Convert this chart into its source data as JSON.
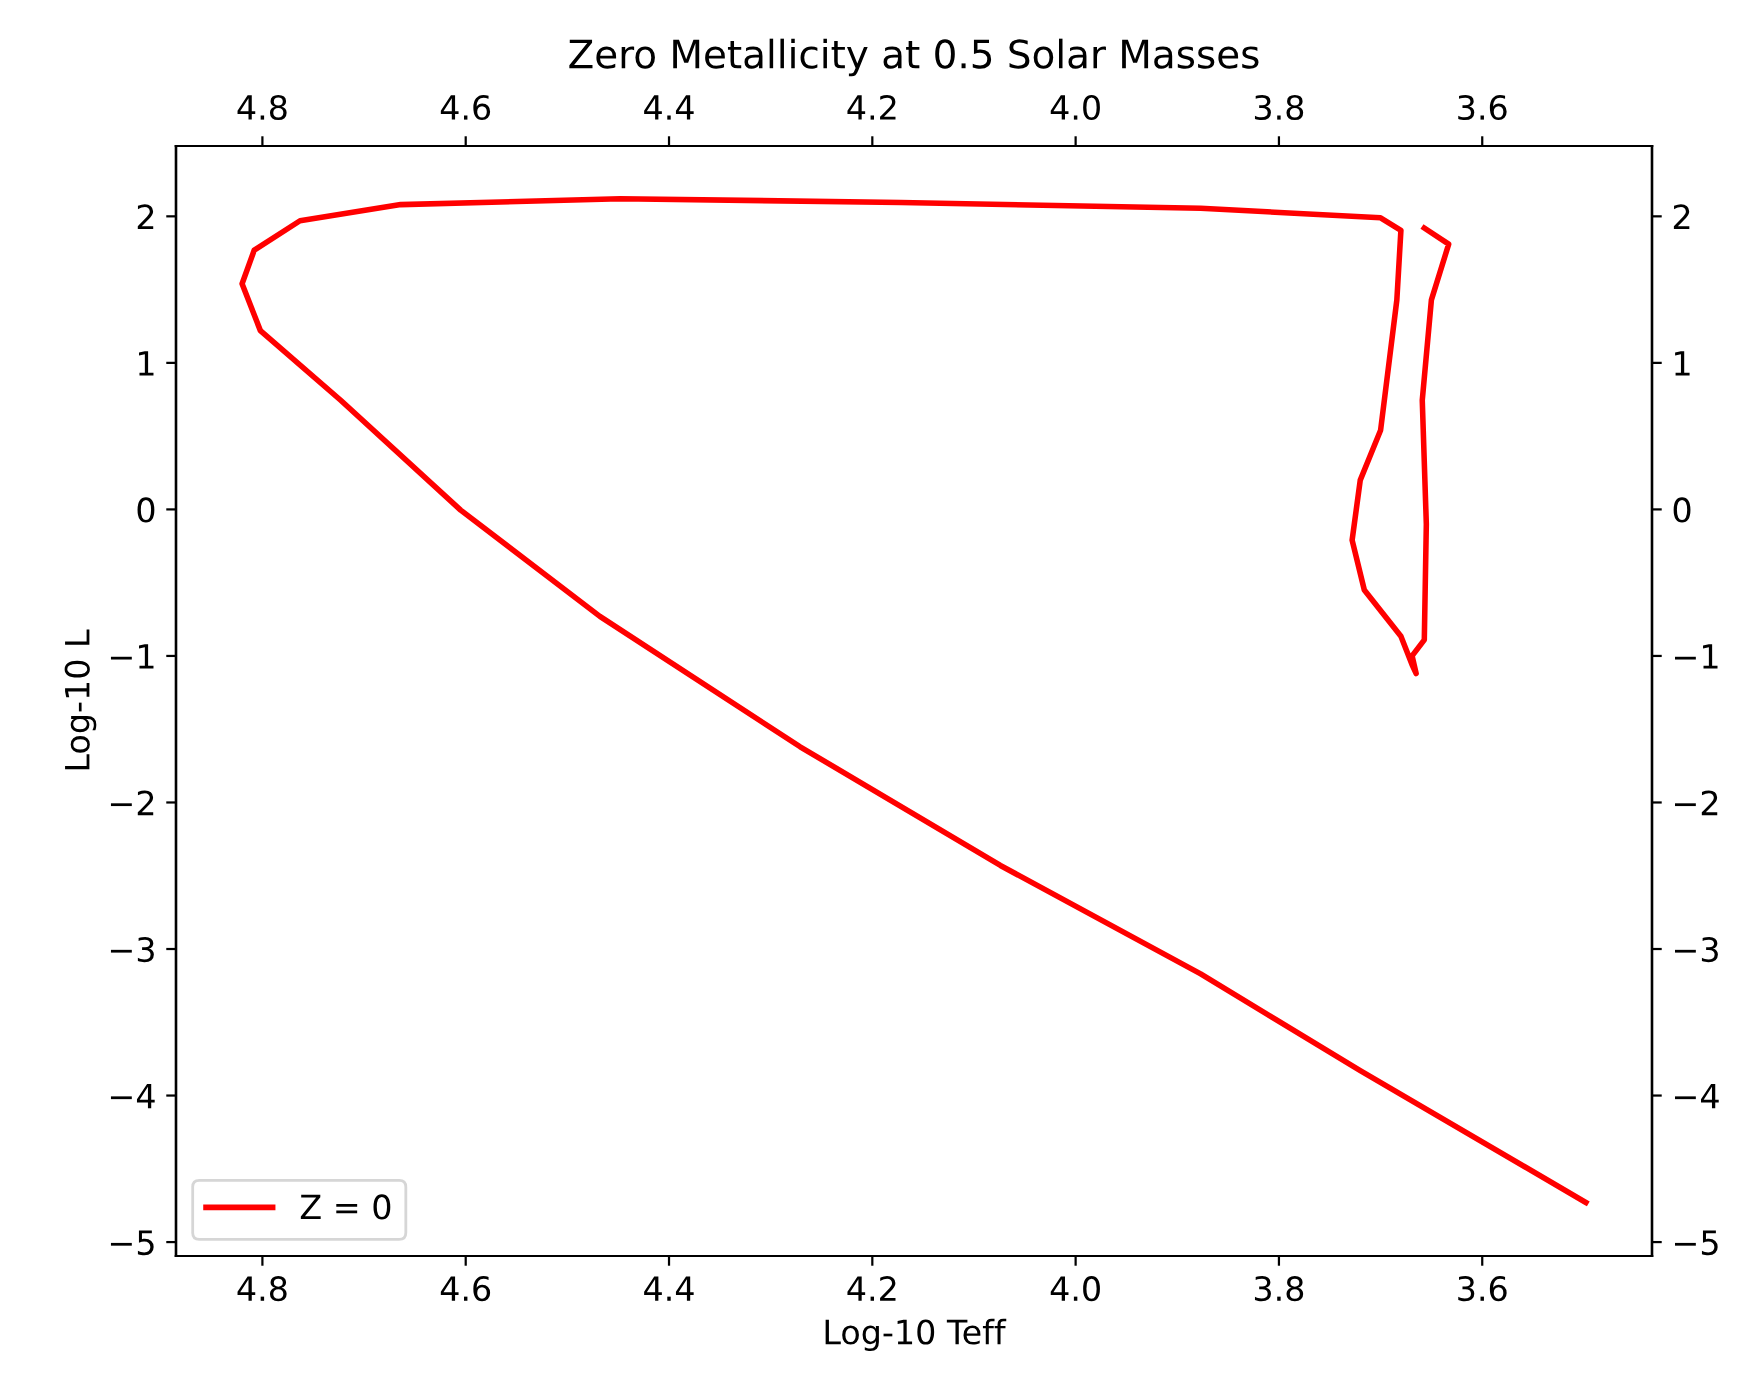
{
  "chart_data": {
    "type": "line",
    "title": "Zero Metallicity at 0.5 Solar Masses",
    "xlabel": "Log-10 Teff",
    "ylabel": "Log-10 L",
    "series": [
      {
        "name": "Z = 0",
        "color": "#ff0000",
        "x": [
          3.498,
          3.72,
          3.877,
          4.074,
          4.271,
          4.468,
          4.605,
          4.723,
          4.802,
          4.82,
          4.808,
          4.763,
          4.664,
          4.448,
          4.172,
          3.877,
          3.7,
          3.68,
          3.684,
          3.7,
          3.72,
          3.728,
          3.716,
          3.68,
          3.669,
          3.665,
          3.669,
          3.657,
          3.655,
          3.659,
          3.65,
          3.633,
          3.657
        ],
        "values": [
          -4.73,
          -3.83,
          -3.17,
          -2.43,
          -1.62,
          -0.73,
          -0.005,
          0.745,
          1.22,
          1.54,
          1.77,
          1.97,
          2.08,
          2.12,
          2.095,
          2.055,
          1.99,
          1.905,
          1.43,
          0.54,
          0.2,
          -0.21,
          -0.55,
          -0.865,
          -1.06,
          -1.12,
          -1.0,
          -0.89,
          -0.1,
          0.745,
          1.43,
          1.81,
          1.92
        ]
      }
    ],
    "xlim": [
      4.885,
      3.433
    ],
    "xticks": [
      {
        "value": 4.8,
        "label": "4.8"
      },
      {
        "value": 4.6,
        "label": "4.6"
      },
      {
        "value": 4.4,
        "label": "4.4"
      },
      {
        "value": 4.2,
        "label": "4.2"
      },
      {
        "value": 4.0,
        "label": "4.0"
      },
      {
        "value": 3.8,
        "label": "3.8"
      },
      {
        "value": 3.6,
        "label": "3.6"
      }
    ],
    "x2lim": [
      4.885,
      3.433
    ],
    "x2ticks": [
      {
        "value": 4.8,
        "label": "4.8"
      },
      {
        "value": 4.6,
        "label": "4.6"
      },
      {
        "value": 4.4,
        "label": "4.4"
      },
      {
        "value": 4.2,
        "label": "4.2"
      },
      {
        "value": 4.0,
        "label": "4.0"
      },
      {
        "value": 3.8,
        "label": "3.8"
      },
      {
        "value": 3.6,
        "label": "3.6"
      }
    ],
    "ylim": [
      -5.095,
      2.48
    ],
    "yticks": [
      {
        "value": -5,
        "label": "−5"
      },
      {
        "value": -4,
        "label": "−4"
      },
      {
        "value": -3,
        "label": "−3"
      },
      {
        "value": -2,
        "label": "−2"
      },
      {
        "value": -1,
        "label": "−1"
      },
      0,
      1,
      2
    ],
    "y2lim": [
      -5.095,
      2.48
    ],
    "y2ticks": [
      {
        "value": -5,
        "label": "−5"
      },
      {
        "value": -4,
        "label": "−4"
      },
      {
        "value": -3,
        "label": "−3"
      },
      {
        "value": -2,
        "label": "−2"
      },
      {
        "value": -1,
        "label": "−1"
      },
      0,
      1,
      2
    ],
    "legend": "lower left",
    "grid": false
  }
}
